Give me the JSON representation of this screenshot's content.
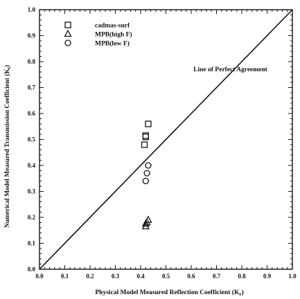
{
  "chart_data": {
    "type": "scatter",
    "xlabel": "Physical Model Measured Reflection Coefficient (K",
    "xlabel_sub": "r",
    "xlabel_end": ")",
    "ylabel": "Numerical Model Measured Transmission Coefficient (K",
    "ylabel_sub": "t",
    "ylabel_end": ")",
    "xlim": [
      0.0,
      1.0
    ],
    "ylim": [
      0.0,
      1.0
    ],
    "x_ticks": [
      "0.0",
      "0.1",
      "0.2",
      "0.3",
      "0.4",
      "0.5",
      "0.6",
      "0.7",
      "0.8",
      "0.9",
      "1.0"
    ],
    "y_ticks": [
      "0.0",
      "0.1",
      "0.2",
      "0.3",
      "0.4",
      "0.5",
      "0.6",
      "0.7",
      "0.8",
      "0.9",
      "1.0"
    ],
    "grid": false,
    "legend_position": "top-left",
    "reference_line": {
      "label": "Line of Perfect Agreement",
      "from": [
        0.0,
        0.0
      ],
      "to": [
        1.0,
        1.0
      ],
      "label_anchor": [
        0.7,
        0.75
      ]
    },
    "series": [
      {
        "name": "cadmas-surf",
        "marker": "square",
        "points": [
          [
            0.43,
            0.56
          ],
          [
            0.42,
            0.515
          ],
          [
            0.42,
            0.51
          ],
          [
            0.415,
            0.48
          ]
        ]
      },
      {
        "name": "MPB(high F)",
        "marker": "triangle",
        "points": [
          [
            0.43,
            0.19
          ],
          [
            0.425,
            0.18
          ],
          [
            0.42,
            0.175
          ],
          [
            0.42,
            0.165
          ]
        ]
      },
      {
        "name": "MPB(low F)",
        "marker": "circle",
        "points": [
          [
            0.43,
            0.4
          ],
          [
            0.425,
            0.37
          ],
          [
            0.42,
            0.34
          ]
        ]
      }
    ],
    "colors": {
      "ink": "#111111",
      "background": "#ffffff"
    }
  }
}
